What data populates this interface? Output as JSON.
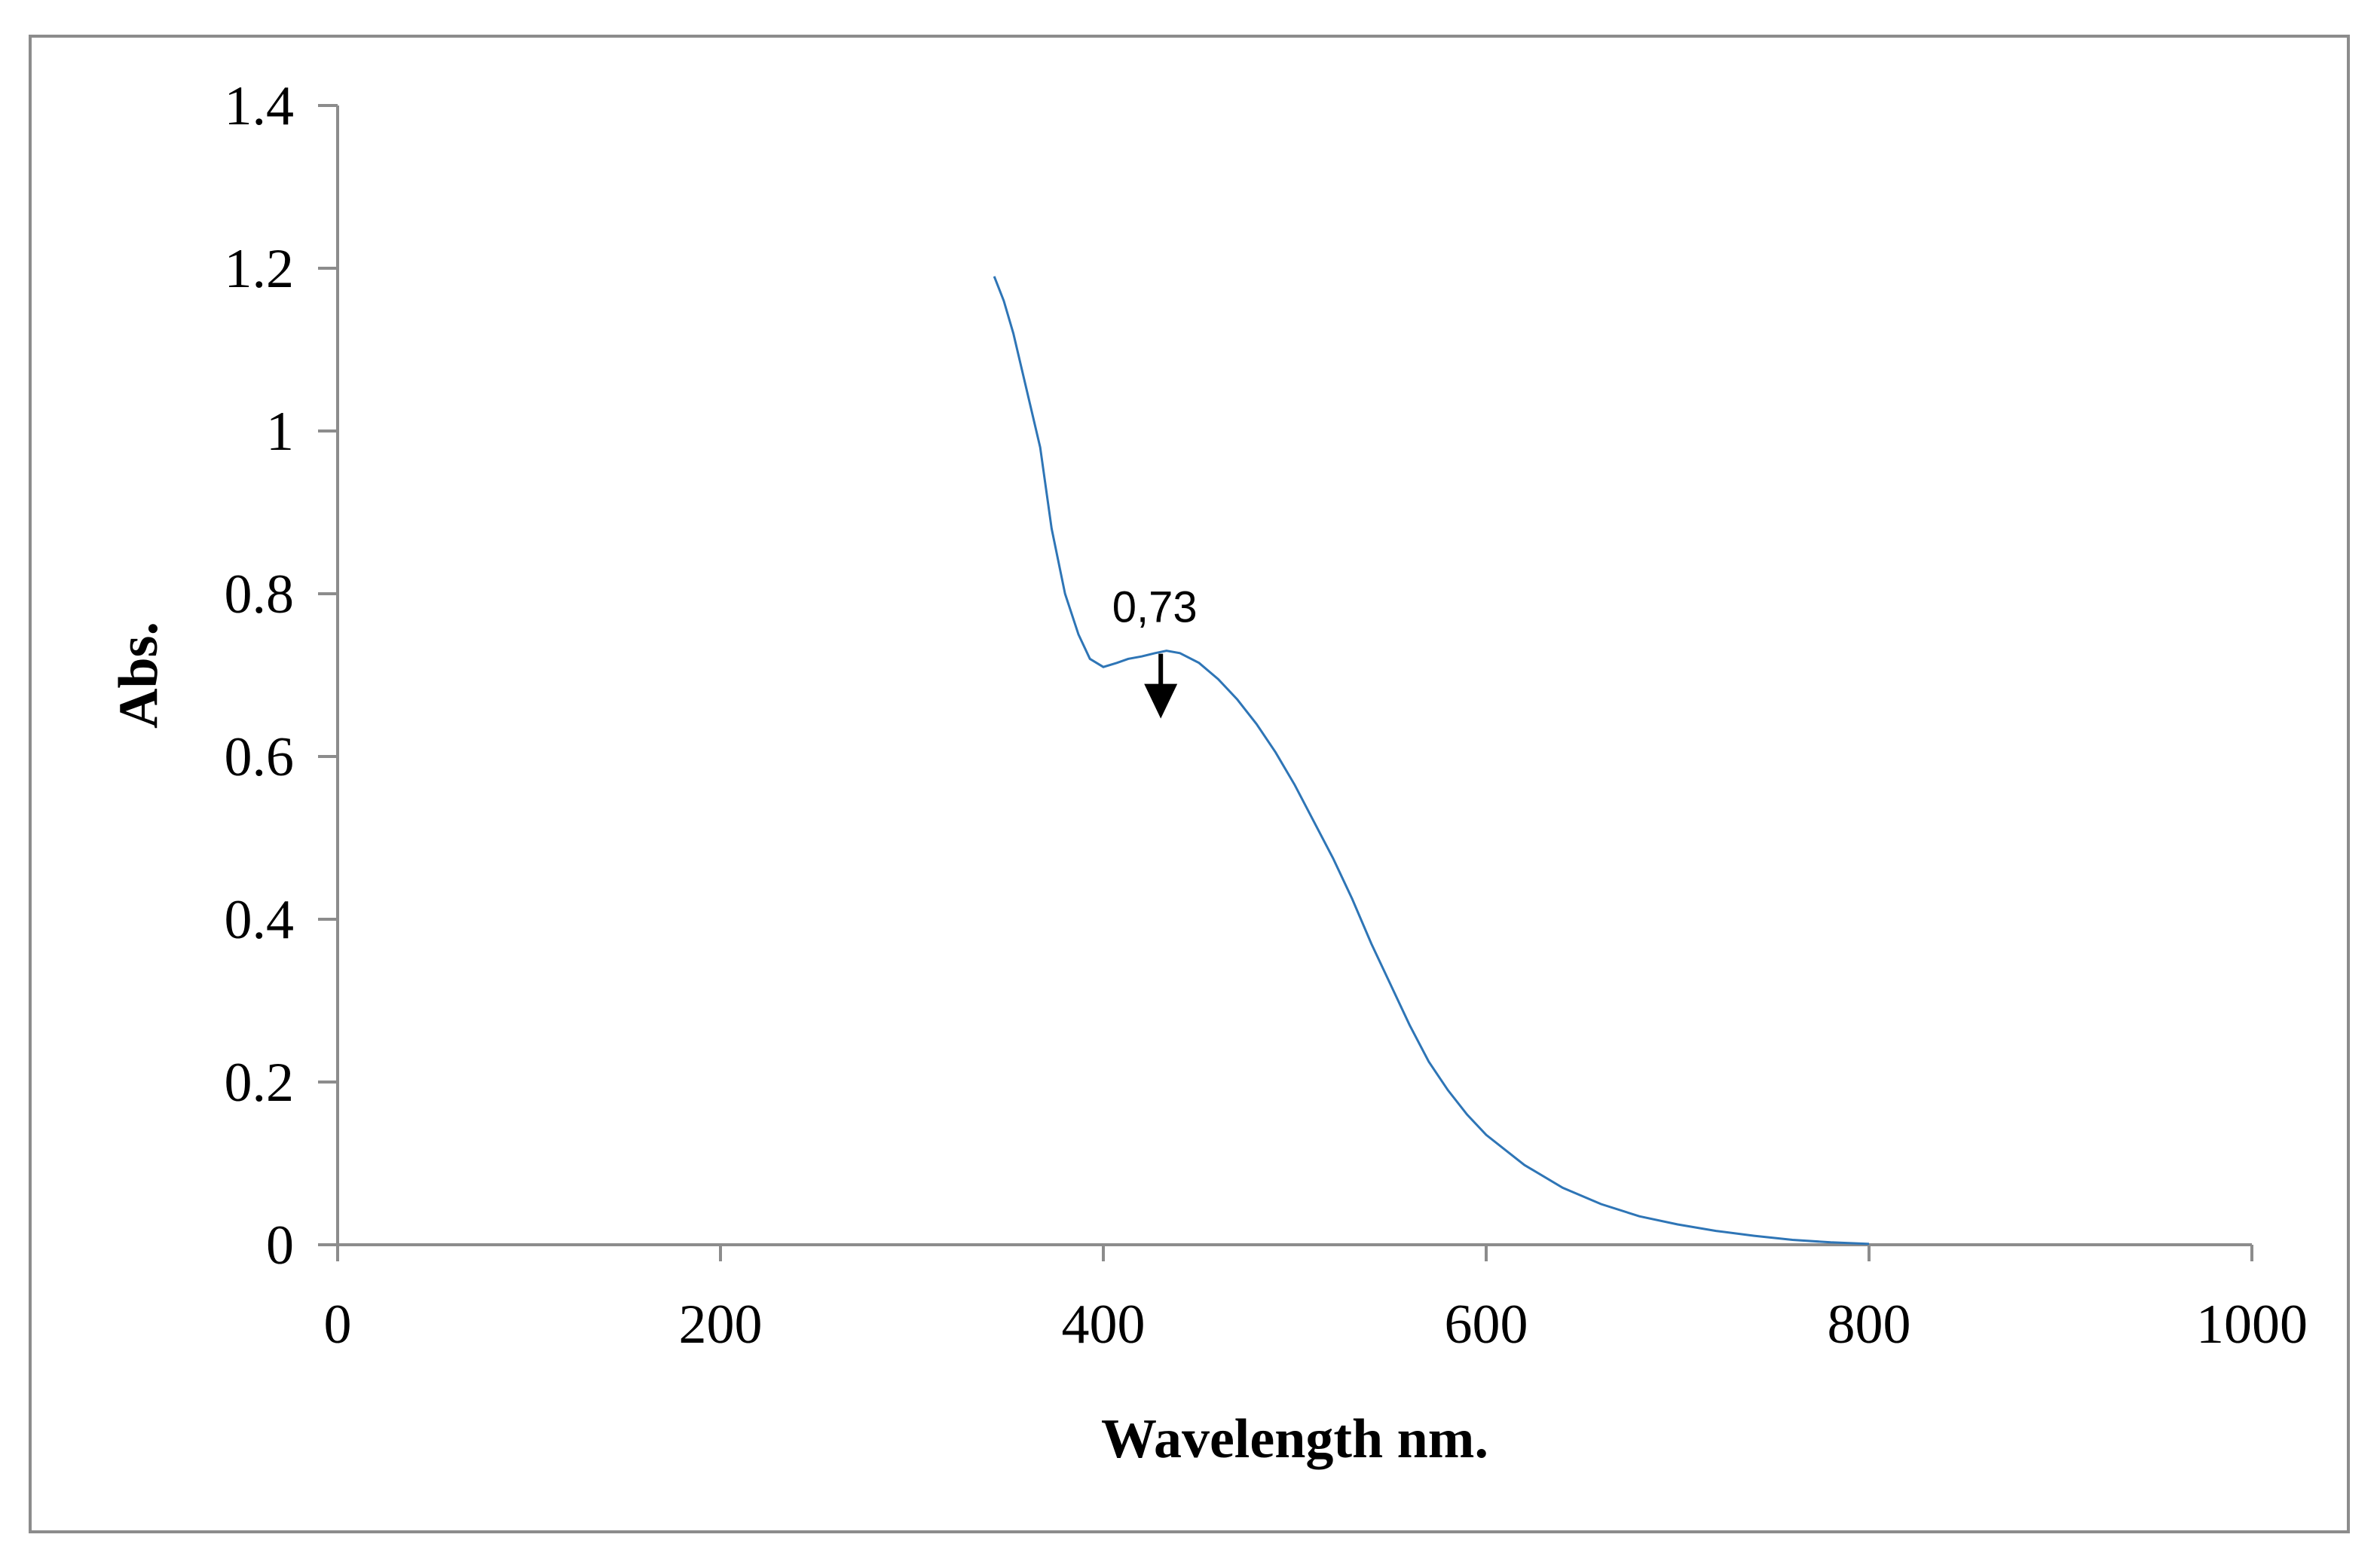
{
  "chart_data": {
    "type": "line",
    "title": "",
    "xlabel": "Wavelength nm.",
    "ylabel": "Abs.",
    "xlim": [
      0,
      1000
    ],
    "ylim": [
      0,
      1.4
    ],
    "x_ticks": [
      0,
      200,
      400,
      600,
      800,
      1000
    ],
    "y_ticks": [
      0,
      0.2,
      0.4,
      0.6,
      0.8,
      1,
      1.2,
      1.4
    ],
    "x_tick_labels": [
      "0",
      "200",
      "400",
      "600",
      "800",
      "1000"
    ],
    "y_tick_labels": [
      "0",
      "0.2",
      "0.4",
      "0.6",
      "0.8",
      "1",
      "1.2",
      "1.4"
    ],
    "grid": false,
    "legend": "none",
    "series": [
      {
        "color": "#2e75b6",
        "x": [
          343,
          348,
          353,
          360,
          367,
          373,
          380,
          387,
          393,
          400,
          407,
          413,
          420,
          427,
          433,
          440,
          450,
          460,
          470,
          480,
          490,
          500,
          510,
          520,
          530,
          540,
          550,
          560,
          570,
          580,
          590,
          600,
          620,
          640,
          660,
          680,
          700,
          720,
          740,
          760,
          780,
          800
        ],
        "y": [
          1.19,
          1.16,
          1.12,
          1.05,
          0.98,
          0.88,
          0.8,
          0.75,
          0.72,
          0.71,
          0.715,
          0.72,
          0.723,
          0.727,
          0.73,
          0.727,
          0.715,
          0.695,
          0.67,
          0.64,
          0.605,
          0.565,
          0.52,
          0.475,
          0.425,
          0.37,
          0.32,
          0.27,
          0.225,
          0.19,
          0.16,
          0.135,
          0.098,
          0.07,
          0.05,
          0.035,
          0.025,
          0.017,
          0.011,
          0.006,
          0.003,
          0.001
        ]
      }
    ],
    "annotations": [
      {
        "text": "0,73",
        "x": 430,
        "y": 0.73,
        "arrow": "down"
      }
    ]
  }
}
